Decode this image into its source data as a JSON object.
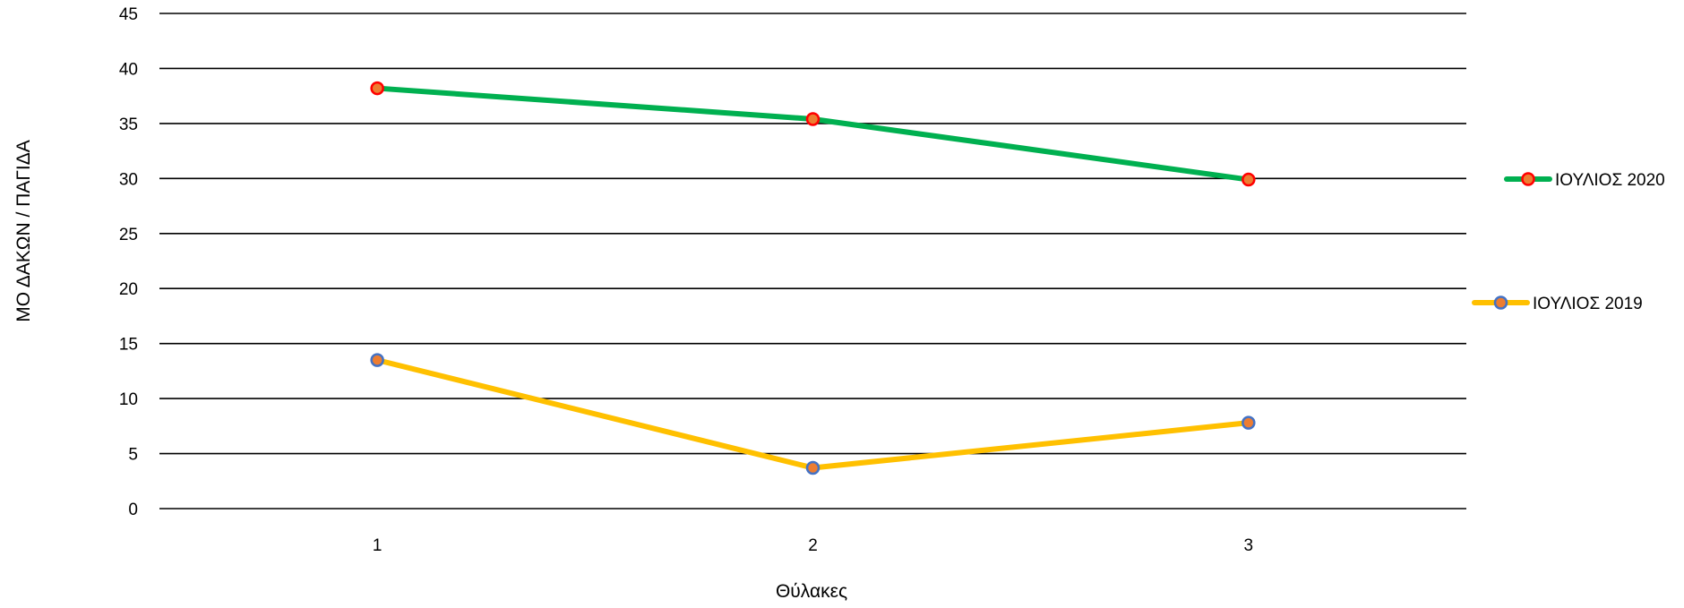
{
  "chart_data": {
    "type": "line",
    "categories": [
      "1",
      "2",
      "3"
    ],
    "series": [
      {
        "name": "ΙΟΥΛΙΟΣ 2020",
        "values": [
          38.2,
          35.4,
          29.9
        ],
        "color": "#00b050",
        "marker_fill": "#ed7d31",
        "marker_stroke": "#ff0000"
      },
      {
        "name": "ΙΟΥΛΙΟΣ 2019",
        "values": [
          13.5,
          3.7,
          7.8
        ],
        "color": "#ffc000",
        "marker_fill": "#ed7d31",
        "marker_stroke": "#4472c4"
      }
    ],
    "xlabel": "Θύλακες",
    "ylabel": "ΜΟ ΔΑΚΩΝ / ΠΑΓΙΔΑ",
    "ylim": [
      0,
      45
    ],
    "yticks": [
      "0",
      "5",
      "10",
      "15",
      "20",
      "25",
      "30",
      "35",
      "40",
      "45"
    ],
    "grid": true,
    "legend_position": "right"
  }
}
